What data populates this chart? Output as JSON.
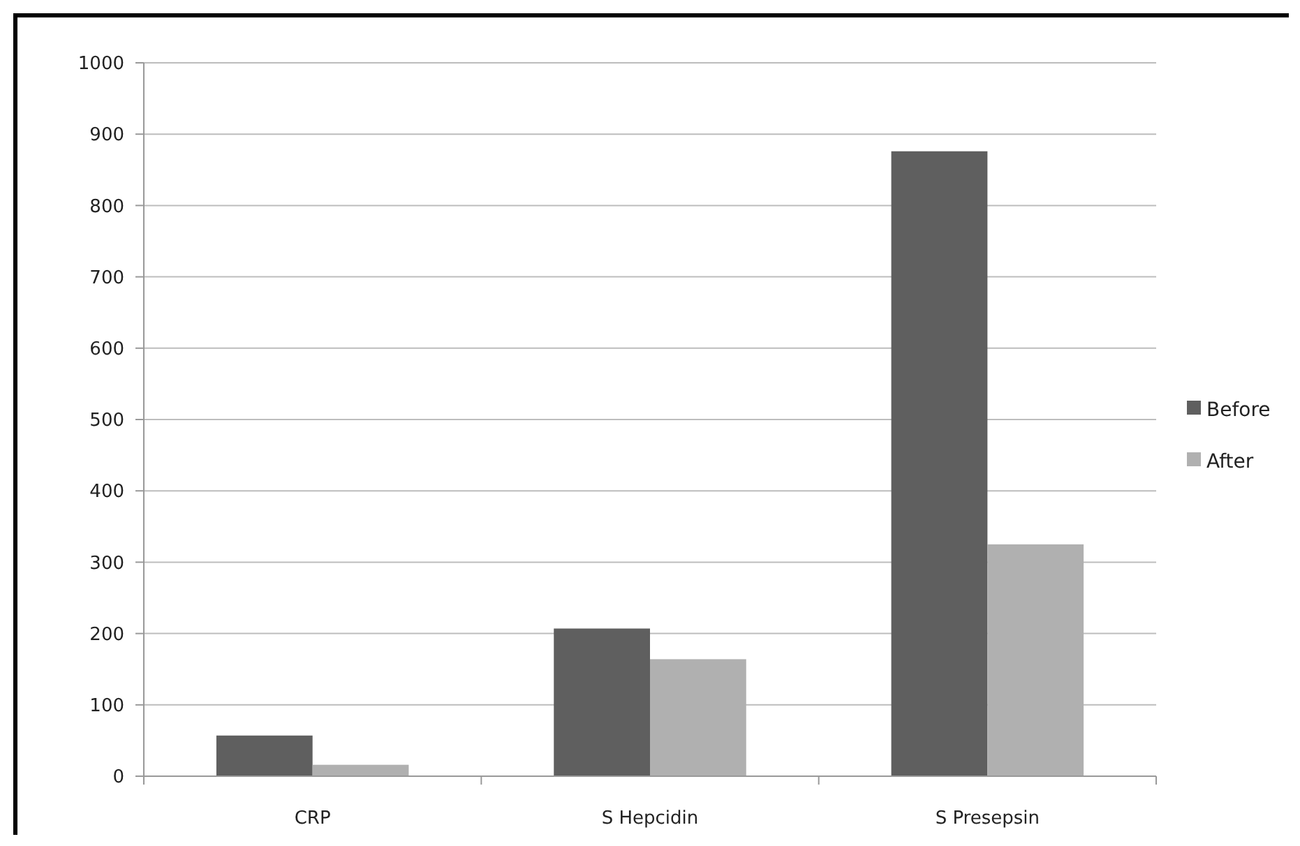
{
  "chart_data": {
    "type": "bar",
    "categories": [
      "CRP",
      "S Hepcidin",
      "S Presepsin"
    ],
    "series": [
      {
        "name": "Before",
        "color": "#5f5f5f",
        "values": [
          57,
          207,
          876
        ]
      },
      {
        "name": "After",
        "color": "#b0b0b0",
        "values": [
          16,
          164,
          325
        ]
      }
    ],
    "ylim": [
      0,
      1000
    ],
    "yticks": [
      0,
      100,
      200,
      300,
      400,
      500,
      600,
      700,
      800,
      900,
      1000
    ],
    "grid": "y",
    "legend": "right"
  }
}
